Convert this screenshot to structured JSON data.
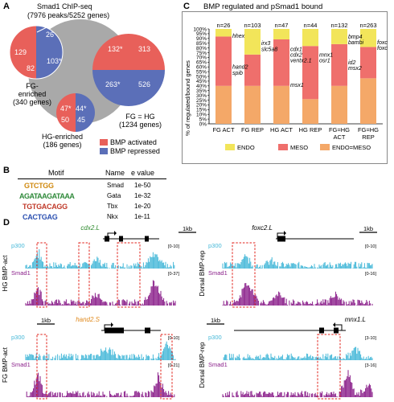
{
  "panelA": {
    "letter": "A",
    "title": "Smad1 ChIP-seq",
    "subtitle": "(7976 peaks/5252 genes)",
    "fg_label": "FG-\nenriched",
    "fg_label_line1": "FG-",
    "fg_label_line2": "enriched",
    "fg_genes": "(340 genes)",
    "hg_label_line1": "HG-enriched",
    "hg_genes": "(186 genes)",
    "fghg_label": "FG = HG",
    "fghg_genes": "(1234 genes)",
    "numbers": {
      "fg_outside": "26",
      "fg_act": "129",
      "fg_rep": "82",
      "fg_overlap": "103*",
      "hg_rep_overlap": "47*",
      "hg_act_overlap": "44*",
      "hg_act": "50",
      "hg_rep": "45",
      "fghg_act_overlap": "132*",
      "fghg_act": "313",
      "fghg_rep_overlap": "263*",
      "fghg_rep": "526"
    },
    "legend": [
      {
        "label": "BMP activated",
        "color": "#e8605a"
      },
      {
        "label": "BMP repressed",
        "color": "#5b6fb8"
      }
    ]
  },
  "panelB": {
    "letter": "B",
    "headers": [
      "Motif",
      "Name",
      "e value"
    ],
    "rows": [
      {
        "logo": "GTCTGG",
        "name": "Smad",
        "evalue": "1e-50"
      },
      {
        "logo": "AGATAAGATAAA",
        "name": "Gata",
        "evalue": "1e-32"
      },
      {
        "logo": "TGTGACAGG",
        "name": "Tbx",
        "evalue": "1e-20"
      },
      {
        "logo": "CACTGAG",
        "name": "Nkx",
        "evalue": "1e-11"
      }
    ]
  },
  "panelC": {
    "letter": "C",
    "title": "BMP regulated and pSmad1 bound",
    "ylabel": "% of regulated/bound genes",
    "legend": [
      {
        "label": "ENDO",
        "color": "#f2e55a"
      },
      {
        "label": "MESO",
        "color": "#ef6f6c"
      },
      {
        "label": "ENDO=MESO",
        "color": "#f4a868"
      }
    ]
  },
  "chart_data": {
    "type": "bar",
    "stacked": true,
    "title": "BMP regulated and pSmad1 bound",
    "ylabel": "% of regulated/bound genes",
    "ylim": [
      0,
      100
    ],
    "yticks": [
      "0%",
      "5%",
      "10%",
      "15%",
      "20%",
      "25%",
      "30%",
      "35%",
      "40%",
      "45%",
      "50%",
      "55%",
      "60%",
      "65%",
      "70%",
      "75%",
      "80%",
      "85%",
      "90%",
      "95%",
      "100%"
    ],
    "categories": [
      "FG ACT",
      "FG REP",
      "HG ACT",
      "HG REP",
      "FG=HG ACT",
      "FG=HG REP"
    ],
    "category_lines": [
      [
        "FG ACT"
      ],
      [
        "FG REP"
      ],
      [
        "HG ACT"
      ],
      [
        "HG REP"
      ],
      [
        "FG=HG",
        "ACT"
      ],
      [
        "FG=HG",
        "REP"
      ]
    ],
    "n_labels": [
      "n=26",
      "n=103",
      "n=47",
      "n=44",
      "n=132",
      "n=263"
    ],
    "series": [
      {
        "name": "ENDO=MESO",
        "color": "#f4a868",
        "values": [
          40,
          40,
          40,
          26,
          40,
          48
        ]
      },
      {
        "name": "MESO",
        "color": "#ef6f6c",
        "values": [
          52,
          33,
          49,
          56,
          44,
          33
        ]
      },
      {
        "name": "ENDO",
        "color": "#f2e55a",
        "values": [
          8,
          27,
          11,
          18,
          16,
          19
        ]
      }
    ],
    "gene_annotations": [
      {
        "bar": 0,
        "level": 93,
        "text": "hhex"
      },
      {
        "bar": 0,
        "level": 60,
        "text": "hand2"
      },
      {
        "bar": 0,
        "level": 54,
        "text": "spib"
      },
      {
        "bar": 1,
        "level": 85,
        "text": "irx3"
      },
      {
        "bar": 1,
        "level": 79,
        "text": "slc5a8"
      },
      {
        "bar": 2,
        "level": 79,
        "text": "cdx1"
      },
      {
        "bar": 2,
        "level": 73,
        "text": "cdx2"
      },
      {
        "bar": 2,
        "level": 67,
        "text": "ventx2.1"
      },
      {
        "bar": 2,
        "level": 41,
        "text": "msx1"
      },
      {
        "bar": 3,
        "level": 73,
        "text": "mnx1"
      },
      {
        "bar": 3,
        "level": 67,
        "text": "osr1"
      },
      {
        "bar": 4,
        "level": 92,
        "text": "bmp4"
      },
      {
        "bar": 4,
        "level": 86,
        "text": "bambi"
      },
      {
        "bar": 4,
        "level": 65,
        "text": "id2"
      },
      {
        "bar": 4,
        "level": 59,
        "text": "msx2"
      },
      {
        "bar": 5,
        "level": 86,
        "text": "foxc1"
      },
      {
        "bar": 5,
        "level": 80,
        "text": "foxc2"
      }
    ]
  },
  "panelD": {
    "letter": "D",
    "tracks": [
      {
        "side_label": "HG BMP-act",
        "gene": "cdx2.L",
        "gene_color": "#2e8b2e",
        "scale": "1kb",
        "p300": "p300",
        "smad": "Smad1",
        "p300_range": "[0-10]",
        "smad_range": "[0-37]"
      },
      {
        "side_label": "Dorsal BMP-rep",
        "gene": "foxc2.L",
        "gene_color": "#000000",
        "scale": "1kb",
        "p300": "p300",
        "smad": "Smad1",
        "p300_range": "[0-10]",
        "smad_range": "[0-16]"
      },
      {
        "side_label": "FG BMP-act",
        "gene": "hand2.S",
        "gene_color": "#e08a1e",
        "scale": "1kb",
        "p300": "p300",
        "smad": "Smad1",
        "p300_range": "[0-10]",
        "smad_range": "[0-21]"
      },
      {
        "side_label": "Dorsal BMP-rep",
        "gene": "mnx1.L",
        "gene_color": "#000000",
        "scale": "1kb",
        "p300": "p300",
        "smad": "Smad1",
        "p300_range": "[3-10]",
        "smad_range": "[3-16]"
      }
    ]
  }
}
